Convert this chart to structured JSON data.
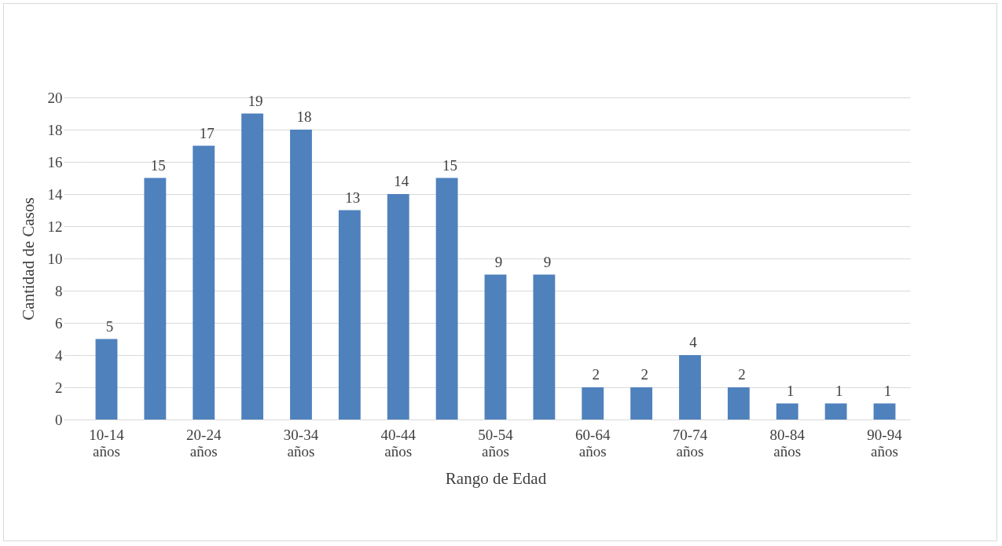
{
  "chart_data": {
    "type": "bar",
    "xlabel": "Rango de Edad",
    "ylabel": "Cantidad de Casos",
    "categories": [
      "10-14 años",
      null,
      "20-24 años",
      null,
      "30-34 años",
      null,
      "40-44 años",
      null,
      "50-54 años",
      null,
      "60-64 años",
      null,
      "70-74 años",
      null,
      "80-84 años",
      null,
      "90-94 años"
    ],
    "values": [
      5,
      15,
      17,
      19,
      18,
      13,
      14,
      15,
      9,
      9,
      2,
      2,
      4,
      2,
      1,
      1,
      1
    ],
    "color": "#4f81bd",
    "ylim": [
      0,
      20
    ],
    "yticks": [
      0,
      2,
      4,
      6,
      8,
      10,
      12,
      14,
      16,
      18,
      20
    ],
    "grid": "y",
    "data_labels": true
  }
}
